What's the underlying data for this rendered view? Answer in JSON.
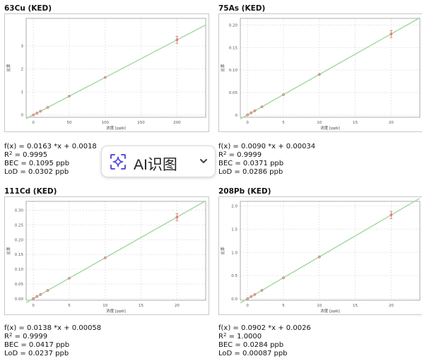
{
  "chart_data": [
    {
      "type": "scatter",
      "title": "63Cu (KED)",
      "xlabel": "浓度 [ppb]",
      "ylabel": "比率",
      "xlim": [
        -10,
        240
      ],
      "ylim": [
        -0.1,
        4.2
      ],
      "xticks": [
        0,
        50,
        100,
        150,
        200
      ],
      "yticks": [
        0,
        1,
        2,
        3
      ],
      "fit": {
        "slope": 0.0163,
        "intercept": 0.0018,
        "color": "#9fd89f"
      },
      "points": [
        [
          0,
          0.002
        ],
        [
          5,
          0.08
        ],
        [
          10,
          0.165
        ],
        [
          20,
          0.33
        ],
        [
          50,
          0.82
        ],
        [
          100,
          1.63
        ],
        [
          200,
          3.27
        ]
      ],
      "stats": {
        "fx": "f(x) = 0.0163 *x + 0.0018",
        "r2_label": "R",
        "r2_sup": "2",
        "r2_value": " = 0.9995",
        "bec": "BEC = 0.1095 ppb",
        "lod": "LoD = 0.0302 ppb"
      }
    },
    {
      "type": "scatter",
      "title": "75As (KED)",
      "xlabel": "浓度 [ppb]",
      "ylabel": "比率",
      "xlim": [
        -1,
        24
      ],
      "ylim": [
        -0.005,
        0.215
      ],
      "xticks": [
        0,
        5,
        10,
        15,
        20
      ],
      "yticks": [
        0,
        0.05,
        0.1,
        0.15,
        0.2
      ],
      "ytick_labels": [
        "0",
        "0.05",
        "0.10",
        "0.15",
        "0.20"
      ],
      "fit": {
        "slope": 0.009,
        "intercept": 0.00034,
        "color": "#9fd89f"
      },
      "points": [
        [
          0,
          0.0003
        ],
        [
          0.5,
          0.0048
        ],
        [
          1,
          0.0093
        ],
        [
          2,
          0.0183
        ],
        [
          5,
          0.0453
        ],
        [
          10,
          0.0903
        ],
        [
          20,
          0.1803
        ]
      ],
      "stats": {
        "fx": "f(x) = 0.0090 *x + 0.00034",
        "r2_label": "R",
        "r2_sup": "2",
        "r2_value": " = 0.9999",
        "bec": "BEC = 0.0371 ppb",
        "lod": "LoD = 0.0286 ppb"
      }
    },
    {
      "type": "scatter",
      "title": "111Cd (KED)",
      "xlabel": "浓度 [ppb]",
      "ylabel": "比率",
      "xlim": [
        -1,
        24
      ],
      "ylim": [
        -0.005,
        0.33
      ],
      "xticks": [
        0,
        5,
        10,
        15,
        20
      ],
      "yticks": [
        0,
        0.05,
        0.1,
        0.15,
        0.2,
        0.25,
        0.3
      ],
      "ytick_labels": [
        "0.00",
        "0.05",
        "0.10",
        "0.15",
        "0.20",
        "0.25",
        "0.30"
      ],
      "fit": {
        "slope": 0.0138,
        "intercept": 0.00058,
        "color": "#9fd89f"
      },
      "points": [
        [
          0,
          0.0006
        ],
        [
          0.5,
          0.0075
        ],
        [
          1,
          0.0144
        ],
        [
          2,
          0.0282
        ],
        [
          5,
          0.0696
        ],
        [
          10,
          0.1386
        ],
        [
          20,
          0.2766
        ]
      ],
      "stats": {
        "fx": "f(x) = 0.0138 *x + 0.00058",
        "r2_label": "R",
        "r2_sup": "2",
        "r2_value": " = 0.9999",
        "bec": "BEC = 0.0417 ppb",
        "lod": "LoD = 0.0237 ppb"
      }
    },
    {
      "type": "scatter",
      "title": "208Pb (KED)",
      "xlabel": "浓度 [ppb]",
      "ylabel": "比率",
      "xlim": [
        -1,
        24
      ],
      "ylim": [
        -0.03,
        2.1
      ],
      "xticks": [
        0,
        5,
        10,
        15,
        20
      ],
      "yticks": [
        0,
        0.5,
        1.0,
        1.5,
        2.0
      ],
      "ytick_labels": [
        "0.0",
        "0.5",
        "1.0",
        "1.5",
        "2.0"
      ],
      "fit": {
        "slope": 0.0902,
        "intercept": 0.0026,
        "color": "#9fd89f"
      },
      "points": [
        [
          0,
          0.0026
        ],
        [
          0.5,
          0.0477
        ],
        [
          1,
          0.0928
        ],
        [
          2,
          0.183
        ],
        [
          5,
          0.4536
        ],
        [
          10,
          0.9046
        ],
        [
          20,
          1.8066
        ]
      ],
      "stats": {
        "fx": "f(x) = 0.0902 *x + 0.0026",
        "r2_label": "R",
        "r2_sup": "2",
        "r2_value": " = 1.0000",
        "bec": "BEC = 0.0284 ppb",
        "lod": "LoD = 0.00087 ppb"
      }
    }
  ],
  "overlay": {
    "label": "AI识图",
    "icon": "ai-sparkle-scan-icon",
    "chevron": "chevron-down-icon",
    "accent": "#5b4fe0"
  },
  "colors": {
    "point": "#e07070",
    "grid": "#e6e6e6",
    "axis": "#999999"
  }
}
